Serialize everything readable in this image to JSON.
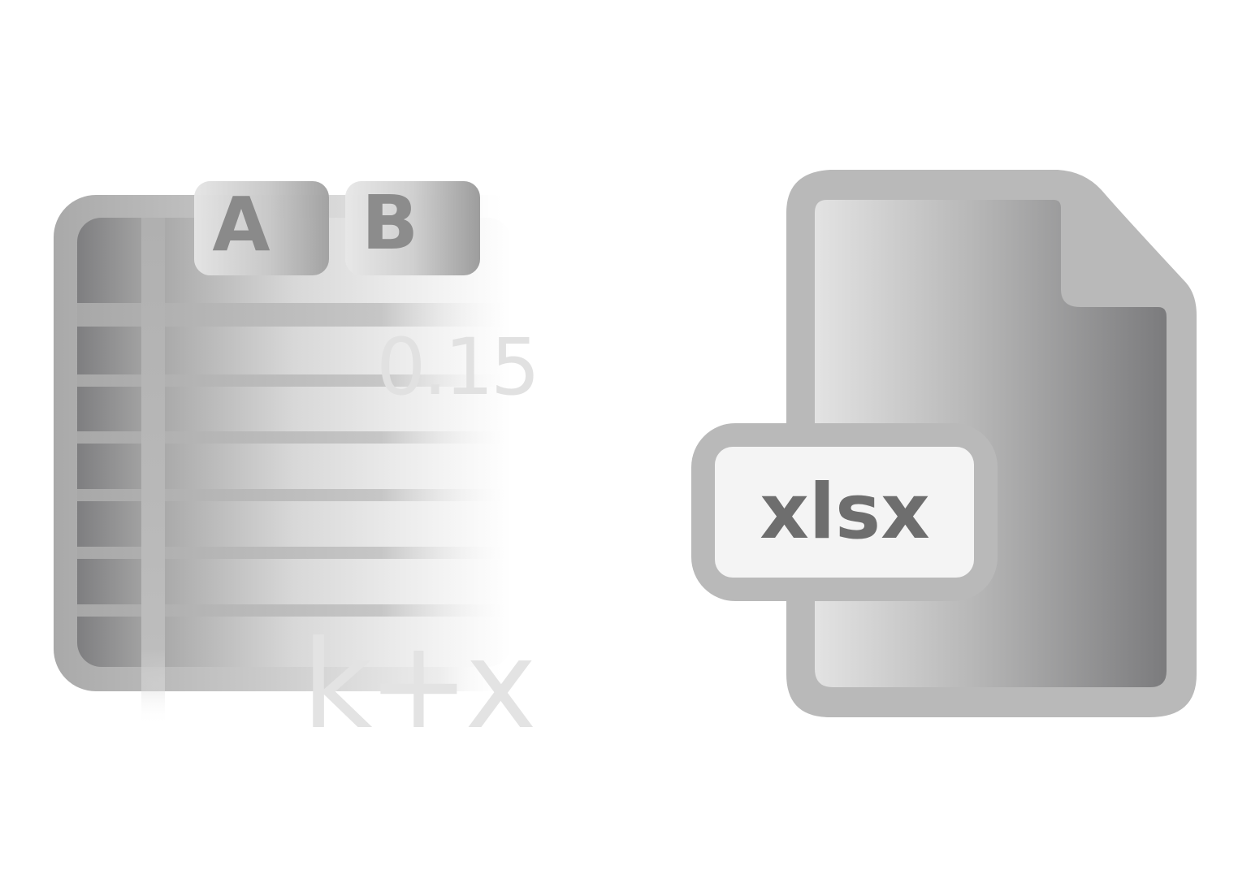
{
  "spreadsheet_icon": {
    "column_headers": [
      "A",
      "B"
    ],
    "cell_value": "0.15",
    "formula_text": "k+x"
  },
  "file_icon": {
    "extension_label": "xlsx"
  },
  "colors": {
    "background": "#ffffff",
    "frame_gray": "#b8b8b8",
    "dark_gray": "#7a7a7a",
    "light_gray": "#e2e2e2",
    "label_fill": "#f4f4f4",
    "label_text": "#6e6e6e",
    "watermark_text": "#dedede"
  }
}
